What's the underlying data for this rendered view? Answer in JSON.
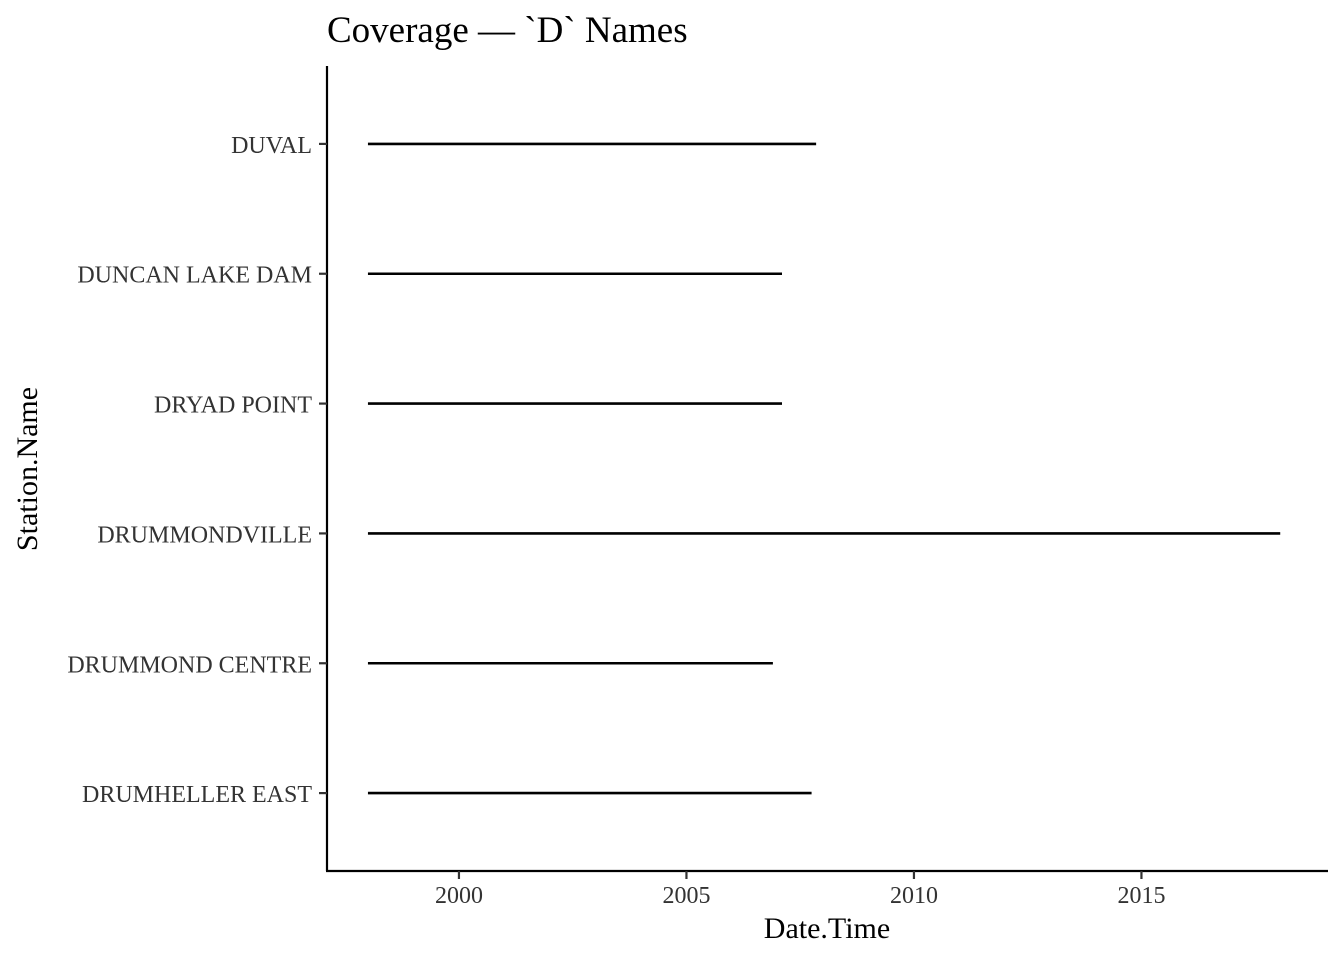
{
  "chart_data": {
    "type": "range-line",
    "title": "Coverage — `D` Names",
    "xlabel": "Date.Time",
    "ylabel": "Station.Name",
    "xlim": [
      1997.1,
      2019.1
    ],
    "x_ticks": [
      2000,
      2005,
      2010,
      2015
    ],
    "x_tick_labels": [
      "2000",
      "2005",
      "2010",
      "2015"
    ],
    "categories": [
      "DRUMHELLER EAST",
      "DRUMMOND CENTRE",
      "DRUMMONDVILLE",
      "DRYAD POINT",
      "DUNCAN LAKE DAM",
      "DUVAL"
    ],
    "segments": [
      {
        "station": "DRUMHELLER EAST",
        "start": 1998.0,
        "end": 2007.75
      },
      {
        "station": "DRUMMOND CENTRE",
        "start": 1998.0,
        "end": 2006.9
      },
      {
        "station": "DRUMMONDVILLE",
        "start": 1998.0,
        "end": 2018.05
      },
      {
        "station": "DRYAD POINT",
        "start": 1998.0,
        "end": 2007.1
      },
      {
        "station": "DUNCAN LAKE DAM",
        "start": 1998.0,
        "end": 2007.1
      },
      {
        "station": "DUVAL",
        "start": 1998.0,
        "end": 2007.85
      }
    ],
    "grid": false,
    "legend": "none",
    "colors": {
      "line": "#000000",
      "axis": "#000000",
      "tick_label": "#333333"
    }
  }
}
